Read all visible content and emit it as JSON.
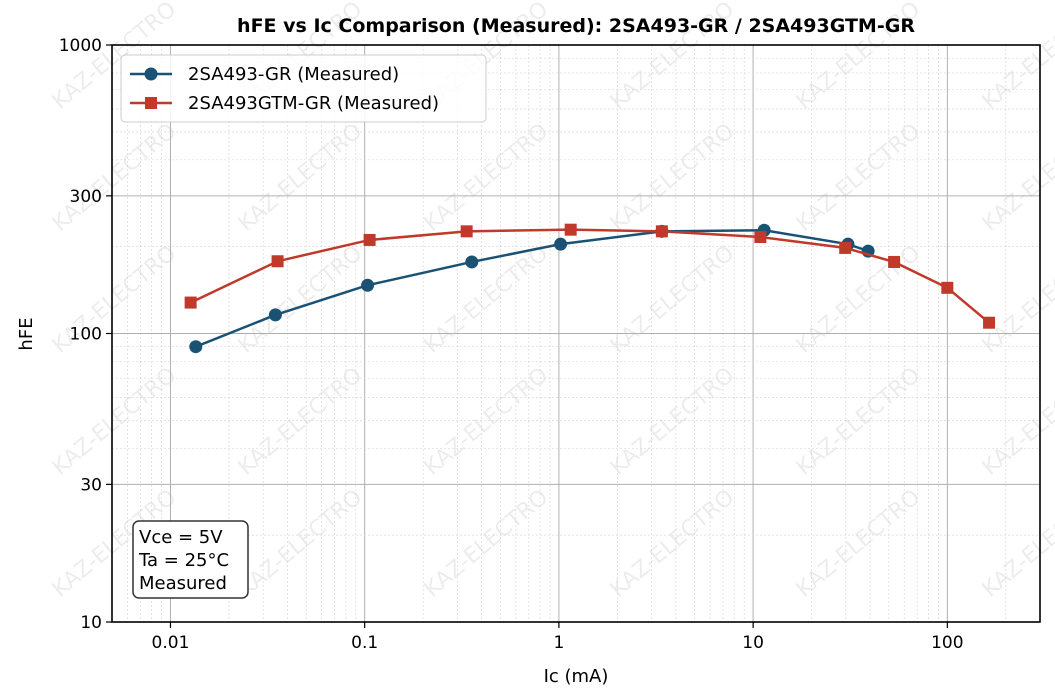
{
  "chart_data": {
    "type": "line",
    "title": "hFE vs Ic Comparison (Measured): 2SA493-GR / 2SA493GTM-GR",
    "xlabel": "Ic (mA)",
    "ylabel": "hFE",
    "xscale": "log",
    "yscale": "log",
    "xlim": [
      0.005,
      300
    ],
    "ylim": [
      10,
      1000
    ],
    "xticks": [
      0.01,
      0.1,
      1,
      10,
      100
    ],
    "xtick_labels": [
      "0.01",
      "0.1",
      "1",
      "10",
      "100"
    ],
    "yticks": [
      10,
      30,
      100,
      300,
      1000
    ],
    "ytick_labels": [
      "10",
      "30",
      "100",
      "300",
      "1000"
    ],
    "grid": "major solid, minor dotted",
    "legend_position": "top-left",
    "series": [
      {
        "name": "2SA493-GR (Measured)",
        "color": "#1a5276",
        "marker": "circle",
        "x": [
          0.0135,
          0.0347,
          0.1035,
          0.356,
          1.02,
          3.39,
          11.4,
          30.8,
          39.1
        ],
        "y": [
          90,
          116,
          147,
          177,
          204,
          226,
          228,
          204,
          193
        ]
      },
      {
        "name": "2SA493GTM-GR (Measured)",
        "color": "#c0392b",
        "marker": "square",
        "x": [
          0.0127,
          0.0356,
          0.106,
          0.335,
          1.15,
          3.39,
          10.9,
          29.8,
          53.2,
          100,
          164
        ],
        "y": [
          128,
          178,
          211,
          226,
          229,
          226,
          216,
          198,
          177,
          144,
          109
        ]
      }
    ],
    "annotation": [
      "Vce = 5V",
      "Ta = 25°C",
      "Measured"
    ],
    "watermark": "KAZ-ELECTRO"
  }
}
